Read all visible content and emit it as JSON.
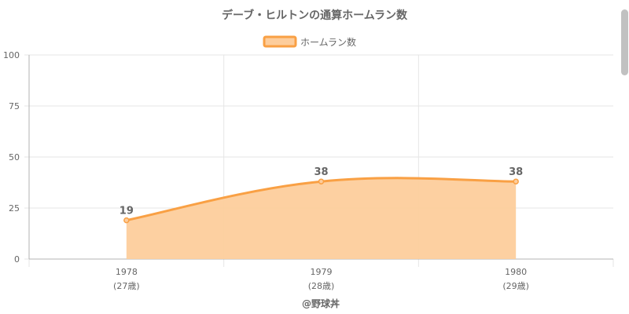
{
  "chart_data": {
    "type": "area",
    "title": "デーブ・ヒルトンの通算ホームラン数",
    "series": [
      {
        "name": "ホームラン数",
        "values": [
          19,
          38,
          38
        ]
      }
    ],
    "categories": [
      "1978",
      "1979",
      "1980"
    ],
    "sub_labels": [
      "(27歳)",
      "(28歳)",
      "(29歳)"
    ],
    "y_ticks": [
      0,
      25,
      50,
      75,
      100
    ],
    "ylim": [
      0,
      100
    ],
    "legend_position": "top",
    "grid": true,
    "source": "@野球丼",
    "colors": {
      "line": "#f9a044",
      "fill": "#fdcd9c",
      "grid": "#e6e6e6",
      "axis": "#b3b3b3",
      "text": "#666666"
    }
  }
}
